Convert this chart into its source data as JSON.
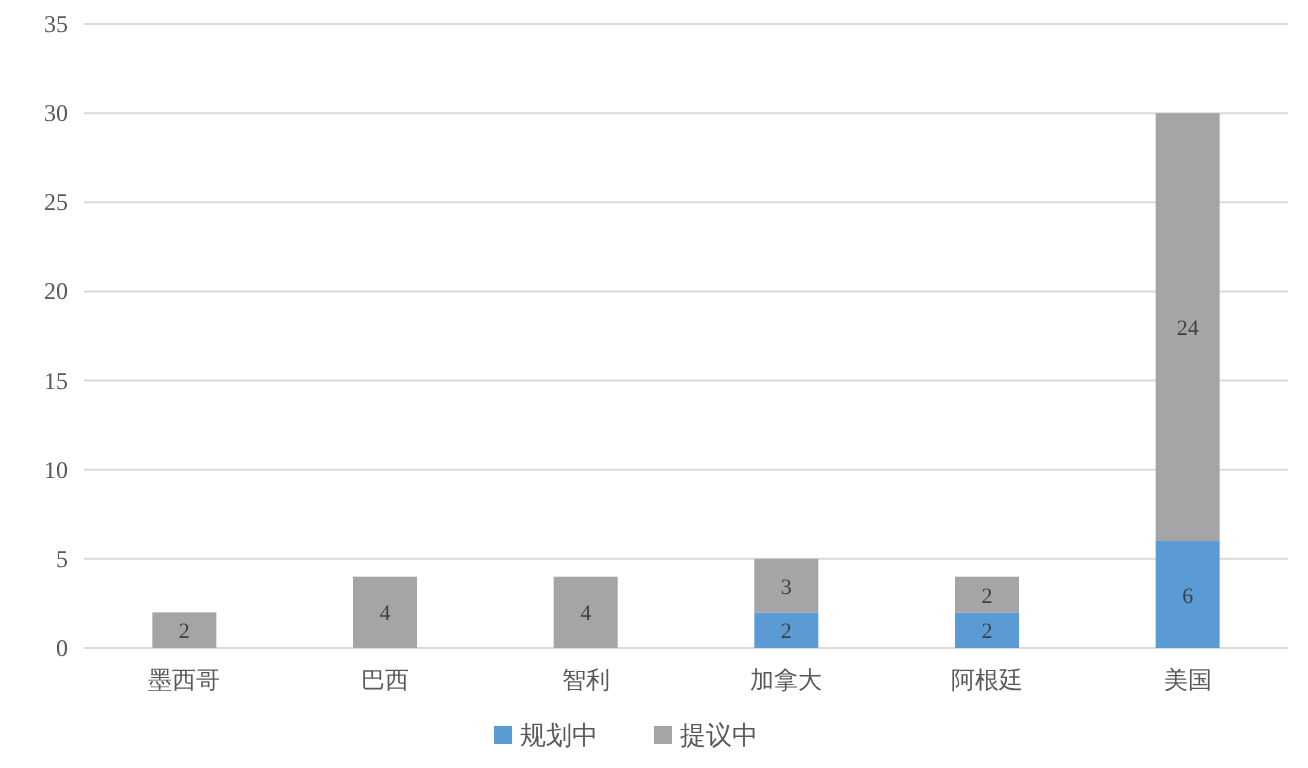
{
  "chart_data": {
    "type": "bar",
    "stacked": true,
    "categories": [
      "墨西哥",
      "巴西",
      "智利",
      "加拿大",
      "阿根廷",
      "美国"
    ],
    "series": [
      {
        "name": "规划中",
        "color": "#5b9bd5",
        "values": [
          null,
          null,
          null,
          2,
          2,
          6
        ]
      },
      {
        "name": "提议中",
        "color": "#a5a5a5",
        "values": [
          2,
          4,
          4,
          3,
          2,
          24
        ]
      }
    ],
    "ylim": [
      0,
      35
    ],
    "yticks": [
      0,
      5,
      10,
      15,
      20,
      25,
      30,
      35
    ],
    "grid": "y",
    "legend": "bottom",
    "data_labels": true
  }
}
